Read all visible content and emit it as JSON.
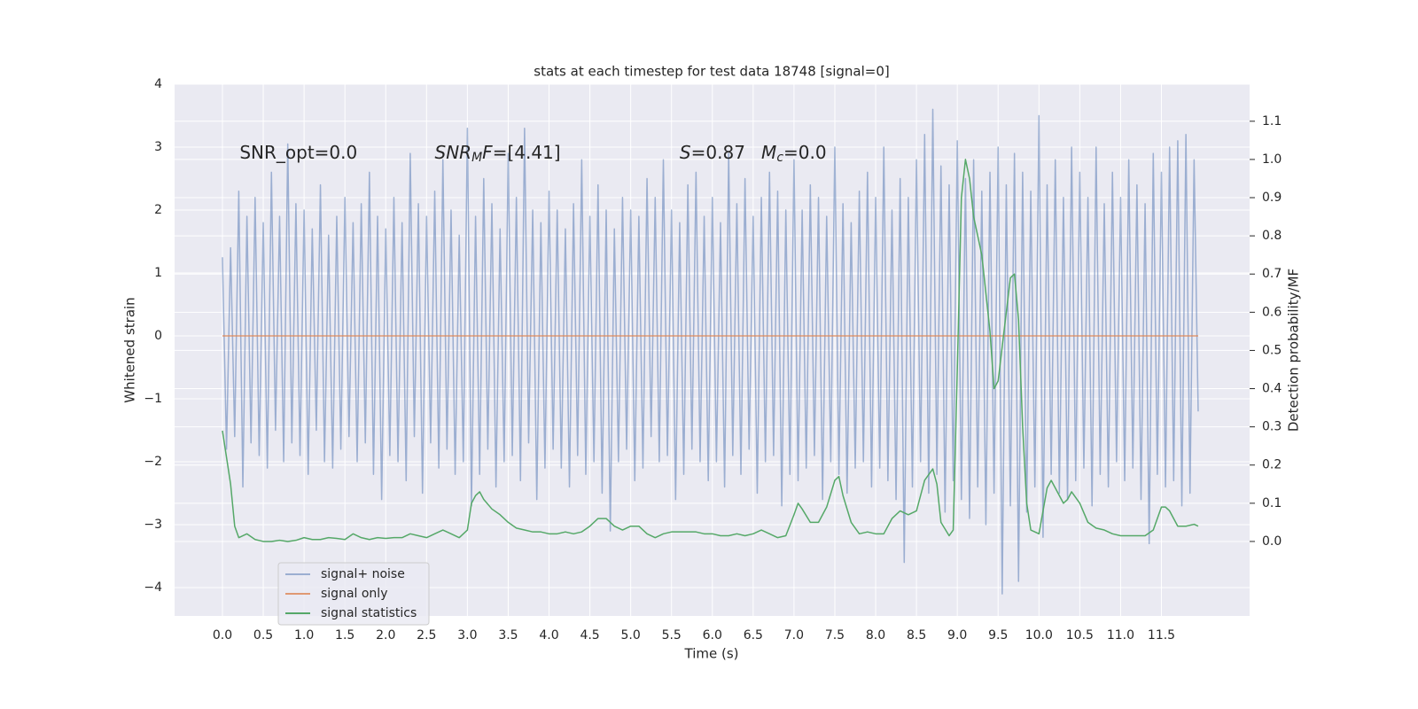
{
  "chart_data": {
    "type": "line",
    "title": "stats at each timestep for test data 18748 [signal=0]",
    "xlabel": "Time (s)",
    "ylabel": "Whitened strain",
    "y2label": "Detection probability/MF",
    "xlim": [
      -0.586,
      12.58
    ],
    "ylim": [
      -4.45,
      4
    ],
    "y2lim": [
      -0.195,
      1.197
    ],
    "xticks": [
      {
        "value": 0,
        "label": "0.0"
      },
      0.5,
      {
        "value": 1,
        "label": "1.0"
      },
      1.5,
      {
        "value": 2,
        "label": "2.0"
      },
      2.5,
      {
        "value": 3,
        "label": "3.0"
      },
      3.5,
      {
        "value": 4,
        "label": "4.0"
      },
      4.5,
      {
        "value": 5,
        "label": "5.0"
      },
      5.5,
      {
        "value": 6,
        "label": "6.0"
      },
      6.5,
      {
        "value": 7,
        "label": "7.0"
      },
      7.5,
      {
        "value": 8,
        "label": "8.0"
      },
      8.5,
      {
        "value": 9,
        "label": "9.0"
      },
      9.5,
      {
        "value": 10,
        "label": "10.0"
      },
      10.5,
      {
        "value": 11,
        "label": "11.0"
      },
      11.5
    ],
    "yticks": [
      {
        "value": -4,
        "label": "−4"
      },
      {
        "value": -3,
        "label": "−3"
      },
      {
        "value": -2,
        "label": "−2"
      },
      {
        "value": -1,
        "label": "−1"
      },
      0,
      1,
      2,
      3,
      4
    ],
    "y2ticks": [
      {
        "value": 0,
        "label": "0.0"
      },
      0.1,
      0.2,
      0.3,
      0.4,
      0.5,
      0.6,
      0.7,
      0.8,
      0.9,
      {
        "value": 1,
        "label": "1.0"
      },
      1.1
    ],
    "grid": true,
    "legend": "lower left",
    "annotations": [
      {
        "x": 0.21,
        "y": 2.9,
        "parts": [
          {
            "text": "SNR_opt=0.0"
          }
        ]
      },
      {
        "x": 2.6,
        "y": 2.9,
        "parts": [
          {
            "text": "SNR",
            "style": "italic"
          },
          {
            "text": "M",
            "style": "sub"
          },
          {
            "text": "F",
            "style": "italic"
          },
          {
            "text": "=[4.41]"
          }
        ]
      },
      {
        "x": 5.6,
        "y": 2.9,
        "parts": [
          {
            "text": "S",
            "style": "italic"
          },
          {
            "text": "=0.87"
          }
        ]
      },
      {
        "x": 6.6,
        "y": 2.9,
        "parts": [
          {
            "text": "M",
            "style": "italic"
          },
          {
            "text": "c",
            "style": "sub"
          },
          {
            "text": "=0.0"
          }
        ]
      }
    ],
    "series": [
      {
        "name": "signal+ noise",
        "color": "#4c72b0",
        "opacity": 0.5,
        "x": [
          0,
          0.05,
          0.1,
          0.15,
          0.2,
          0.25,
          0.3,
          0.35,
          0.4,
          0.45,
          0.5,
          0.55,
          0.6,
          0.65,
          0.7,
          0.75,
          0.8,
          0.85,
          0.9,
          0.95,
          1,
          1.05,
          1.1,
          1.15,
          1.2,
          1.25,
          1.3,
          1.35,
          1.4,
          1.45,
          1.5,
          1.55,
          1.6,
          1.65,
          1.7,
          1.75,
          1.8,
          1.85,
          1.9,
          1.95,
          2,
          2.05,
          2.1,
          2.15,
          2.2,
          2.25,
          2.3,
          2.35,
          2.4,
          2.45,
          2.5,
          2.55,
          2.6,
          2.65,
          2.7,
          2.75,
          2.8,
          2.85,
          2.9,
          2.95,
          3,
          3.05,
          3.1,
          3.15,
          3.2,
          3.25,
          3.3,
          3.35,
          3.4,
          3.45,
          3.5,
          3.55,
          3.6,
          3.65,
          3.7,
          3.75,
          3.8,
          3.85,
          3.9,
          3.95,
          4,
          4.05,
          4.1,
          4.15,
          4.2,
          4.25,
          4.3,
          4.35,
          4.4,
          4.45,
          4.5,
          4.55,
          4.6,
          4.65,
          4.7,
          4.75,
          4.8,
          4.85,
          4.9,
          4.95,
          5,
          5.05,
          5.1,
          5.15,
          5.2,
          5.25,
          5.3,
          5.35,
          5.4,
          5.45,
          5.5,
          5.55,
          5.6,
          5.65,
          5.7,
          5.75,
          5.8,
          5.85,
          5.9,
          5.95,
          6,
          6.05,
          6.1,
          6.15,
          6.2,
          6.25,
          6.3,
          6.35,
          6.4,
          6.45,
          6.5,
          6.55,
          6.6,
          6.65,
          6.7,
          6.75,
          6.8,
          6.85,
          6.9,
          6.95,
          7,
          7.05,
          7.1,
          7.15,
          7.2,
          7.25,
          7.3,
          7.35,
          7.4,
          7.45,
          7.5,
          7.55,
          7.6,
          7.65,
          7.7,
          7.75,
          7.8,
          7.85,
          7.9,
          7.95,
          8,
          8.05,
          8.1,
          8.15,
          8.2,
          8.25,
          8.3,
          8.35,
          8.4,
          8.45,
          8.5,
          8.55,
          8.6,
          8.65,
          8.7,
          8.75,
          8.8,
          8.85,
          8.9,
          8.95,
          9,
          9.05,
          9.1,
          9.15,
          9.2,
          9.25,
          9.3,
          9.35,
          9.4,
          9.45,
          9.5,
          9.55,
          9.6,
          9.65,
          9.7,
          9.75,
          9.8,
          9.85,
          9.9,
          9.95,
          10,
          10.05,
          10.1,
          10.15,
          10.2,
          10.25,
          10.3,
          10.35,
          10.4,
          10.45,
          10.5,
          10.55,
          10.6,
          10.65,
          10.7,
          10.75,
          10.8,
          10.85,
          10.9,
          10.95,
          11,
          11.05,
          11.1,
          11.15,
          11.2,
          11.25,
          11.3,
          11.35,
          11.4,
          11.45,
          11.5,
          11.55,
          11.6,
          11.65,
          11.7,
          11.75,
          11.8,
          11.85,
          11.9,
          11.95
        ],
        "values": [
          1.25,
          -1.8,
          1.4,
          -1.6,
          2.3,
          -2.4,
          1.9,
          -1.7,
          2.2,
          -1.9,
          1.8,
          -2.1,
          2.6,
          -1.5,
          1.9,
          -2.0,
          3.05,
          -1.7,
          2.1,
          -1.9,
          2.0,
          -2.2,
          1.7,
          -1.5,
          2.4,
          -2.0,
          1.6,
          -2.1,
          1.9,
          -1.8,
          2.2,
          -1.6,
          1.8,
          -2.0,
          2.1,
          -1.7,
          2.6,
          -2.2,
          1.9,
          -2.6,
          1.7,
          -1.9,
          2.2,
          -2.0,
          1.8,
          -2.3,
          2.9,
          -1.6,
          2.1,
          -2.5,
          1.9,
          -1.7,
          2.3,
          -2.1,
          2.8,
          -1.8,
          2.0,
          -2.2,
          1.6,
          -2.0,
          3.3,
          -2.7,
          1.9,
          -2.2,
          2.5,
          -1.8,
          2.1,
          -2.4,
          1.7,
          -2.0,
          2.9,
          -1.9,
          2.2,
          -2.3,
          3.3,
          -1.7,
          2.0,
          -2.6,
          1.8,
          -2.1,
          2.3,
          -1.8,
          2.0,
          -2.1,
          1.7,
          -2.4,
          2.1,
          -1.9,
          2.8,
          -2.2,
          1.9,
          -2.0,
          2.4,
          -2.5,
          2.0,
          -3.1,
          1.7,
          -2.0,
          2.2,
          -1.8,
          2.0,
          -2.3,
          1.9,
          -2.1,
          2.5,
          -1.6,
          2.2,
          -2.0,
          2.8,
          -1.9,
          2.0,
          -2.6,
          1.8,
          -2.2,
          2.4,
          -1.8,
          2.6,
          -2.0,
          1.9,
          -2.3,
          2.2,
          -2.0,
          1.8,
          -2.4,
          2.9,
          -1.9,
          2.1,
          -2.2,
          2.5,
          -1.8,
          1.9,
          -2.5,
          2.2,
          -2.0,
          2.6,
          -1.9,
          2.3,
          -2.7,
          2.0,
          -2.2,
          2.8,
          -2.3,
          2.0,
          -2.1,
          2.4,
          -1.9,
          2.2,
          -2.6,
          1.9,
          -2.0,
          3.0,
          -2.2,
          2.1,
          -2.5,
          1.8,
          -2.1,
          2.3,
          -2.0,
          2.6,
          -2.4,
          2.2,
          -2.1,
          3.0,
          -2.3,
          2.0,
          -2.6,
          2.5,
          -3.6,
          2.2,
          -2.4,
          2.8,
          -2.0,
          3.2,
          -2.5,
          3.6,
          -2.2,
          2.7,
          -2.8,
          2.4,
          -2.3,
          3.1,
          -2.6,
          2.5,
          -2.9,
          2.8,
          -2.4,
          2.3,
          -3.0,
          2.6,
          -2.5,
          3.0,
          -4.1,
          2.4,
          -2.7,
          2.9,
          -3.9,
          2.6,
          -2.8,
          2.3,
          -2.4,
          3.5,
          -3.2,
          2.4,
          -2.2,
          2.8,
          -2.5,
          2.2,
          -2.6,
          3.0,
          -2.3,
          2.6,
          -2.1,
          2.2,
          -2.7,
          3.0,
          -2.2,
          2.1,
          -2.4,
          2.6,
          -2.0,
          2.2,
          -2.3,
          2.8,
          -2.1,
          2.4,
          -2.6,
          2.1,
          -3.3,
          2.9,
          -2.2,
          2.6,
          -2.4,
          3.0,
          -2.3,
          3.1,
          -2.7,
          3.2,
          -2.5,
          2.8,
          -1.2
        ]
      },
      {
        "name": "signal only",
        "color": "#dd8452",
        "opacity": 0.8,
        "x": [
          0,
          11.95
        ],
        "values": [
          0,
          0
        ]
      },
      {
        "name": "signal statistics",
        "color": "#55a868",
        "opacity": 1,
        "axis": "y2",
        "x": [
          0,
          0.1,
          0.15,
          0.2,
          0.3,
          0.4,
          0.5,
          0.6,
          0.7,
          0.8,
          0.9,
          1.0,
          1.1,
          1.2,
          1.3,
          1.4,
          1.5,
          1.6,
          1.7,
          1.8,
          1.9,
          2.0,
          2.1,
          2.2,
          2.3,
          2.4,
          2.5,
          2.6,
          2.7,
          2.8,
          2.9,
          3.0,
          3.05,
          3.1,
          3.15,
          3.2,
          3.3,
          3.4,
          3.5,
          3.6,
          3.7,
          3.8,
          3.9,
          4.0,
          4.1,
          4.2,
          4.3,
          4.4,
          4.5,
          4.6,
          4.7,
          4.8,
          4.9,
          5.0,
          5.1,
          5.2,
          5.3,
          5.4,
          5.5,
          5.6,
          5.7,
          5.8,
          5.9,
          6.0,
          6.1,
          6.2,
          6.3,
          6.4,
          6.5,
          6.6,
          6.7,
          6.8,
          6.9,
          7.0,
          7.05,
          7.1,
          7.2,
          7.3,
          7.4,
          7.5,
          7.55,
          7.6,
          7.7,
          7.8,
          7.9,
          8.0,
          8.1,
          8.2,
          8.3,
          8.4,
          8.5,
          8.6,
          8.7,
          8.75,
          8.8,
          8.9,
          8.95,
          9.0,
          9.05,
          9.1,
          9.15,
          9.2,
          9.3,
          9.4,
          9.45,
          9.5,
          9.6,
          9.65,
          9.7,
          9.75,
          9.8,
          9.85,
          9.9,
          10.0,
          10.05,
          10.1,
          10.15,
          10.2,
          10.3,
          10.35,
          10.4,
          10.5,
          10.6,
          10.7,
          10.8,
          10.9,
          11.0,
          11.1,
          11.2,
          11.3,
          11.4,
          11.5,
          11.55,
          11.6,
          11.7,
          11.8,
          11.9,
          11.95
        ],
        "values": [
          0.29,
          0.15,
          0.04,
          0.01,
          0.02,
          0.005,
          0,
          0,
          0.003,
          0,
          0.003,
          0.01,
          0.005,
          0.005,
          0.01,
          0.008,
          0.005,
          0.02,
          0.01,
          0.005,
          0.01,
          0.008,
          0.01,
          0.01,
          0.02,
          0.015,
          0.01,
          0.02,
          0.03,
          0.02,
          0.01,
          0.03,
          0.1,
          0.12,
          0.13,
          0.11,
          0.085,
          0.07,
          0.05,
          0.035,
          0.03,
          0.025,
          0.025,
          0.02,
          0.02,
          0.025,
          0.02,
          0.025,
          0.04,
          0.06,
          0.06,
          0.04,
          0.03,
          0.04,
          0.04,
          0.02,
          0.01,
          0.02,
          0.025,
          0.025,
          0.025,
          0.025,
          0.02,
          0.02,
          0.015,
          0.015,
          0.02,
          0.015,
          0.02,
          0.03,
          0.02,
          0.01,
          0.015,
          0.07,
          0.1,
          0.085,
          0.05,
          0.05,
          0.09,
          0.16,
          0.17,
          0.12,
          0.05,
          0.02,
          0.025,
          0.02,
          0.02,
          0.06,
          0.08,
          0.07,
          0.08,
          0.16,
          0.19,
          0.15,
          0.05,
          0.015,
          0.03,
          0.45,
          0.9,
          1.0,
          0.95,
          0.85,
          0.75,
          0.55,
          0.4,
          0.42,
          0.6,
          0.69,
          0.7,
          0.58,
          0.3,
          0.1,
          0.03,
          0.02,
          0.08,
          0.14,
          0.16,
          0.14,
          0.1,
          0.11,
          0.13,
          0.1,
          0.05,
          0.035,
          0.03,
          0.02,
          0.015,
          0.015,
          0.015,
          0.015,
          0.03,
          0.09,
          0.09,
          0.08,
          0.04,
          0.04,
          0.045,
          0.04
        ]
      }
    ]
  }
}
